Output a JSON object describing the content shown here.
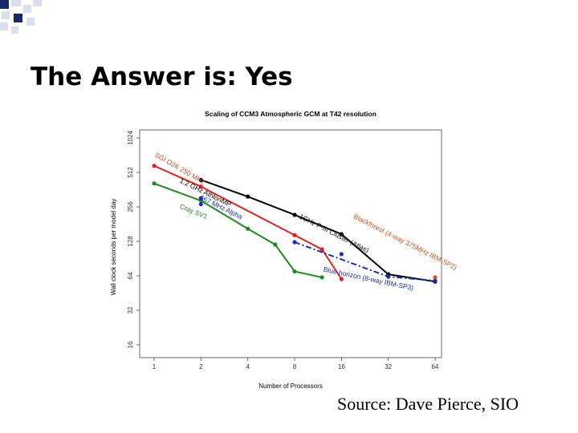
{
  "slide": {
    "title": "The Answer is: Yes",
    "source": "Source: Dave Pierce, SIO"
  },
  "colors": {
    "accent_dark": "#1b2a66",
    "accent_light": "#dadff0",
    "line_black": "#000000",
    "line_red": "#e3211c",
    "line_green": "#1f8a1f",
    "line_blue": "#1a2cc4",
    "anno_red": "#d2501f"
  },
  "chart_data": {
    "type": "line",
    "title": "Scaling of CCM3 Atmospheric GCM at T42 resolution",
    "xlabel": "Number of Processors",
    "ylabel": "Wall clock seconds per model day",
    "x_scale": "log2",
    "y_scale": "log2",
    "xticks": [
      1,
      2,
      4,
      8,
      16,
      32,
      64
    ],
    "yticks": [
      16,
      32,
      64,
      128,
      256,
      512,
      1024
    ],
    "xlim": [
      1,
      64
    ],
    "ylim": [
      16,
      1024
    ],
    "grid": false,
    "series": [
      {
        "key": "black",
        "color": "#000000",
        "style": "solid",
        "x": [
          2,
          4,
          8,
          16,
          32,
          64
        ],
        "y": [
          440,
          315,
          218,
          148,
          66,
          57
        ]
      },
      {
        "key": "red",
        "color": "#e3211c",
        "style": "solid",
        "x": [
          1,
          2,
          8,
          12,
          16
        ],
        "y": [
          585,
          385,
          145,
          109,
          60
        ]
      },
      {
        "key": "green",
        "color": "#1f8a1f",
        "style": "solid",
        "x": [
          1,
          2,
          4,
          6,
          8,
          12
        ],
        "y": [
          410,
          290,
          165,
          120,
          70,
          62
        ]
      },
      {
        "key": "blue",
        "color": "#1a2cc4",
        "style": "dashdot",
        "x": [
          8,
          32,
          64
        ],
        "y": [
          126,
          63,
          58
        ]
      }
    ],
    "extra_points": [
      {
        "x": 2,
        "y": 305,
        "color": "#1a2cc4"
      },
      {
        "x": 2,
        "y": 270,
        "color": "#1a2cc4"
      },
      {
        "x": 16,
        "y": 99,
        "color": "#1a2cc4"
      },
      {
        "x": 64,
        "y": 62,
        "color": "#d2501f"
      }
    ],
    "annotations": [
      {
        "text": "SGI O2K 250 MHz",
        "color": "#d2501f",
        "x": 1,
        "y": 710,
        "rotate": 30
      },
      {
        "text": "1.2 GHz AthlonMP",
        "color": "#000000",
        "x": 1.45,
        "y": 420,
        "rotate": 26
      },
      {
        "text": "667 MHz Alpha",
        "color": "#1a2cc4",
        "x": 1.95,
        "y": 300,
        "rotate": 26
      },
      {
        "text": "Cray SV1",
        "color": "#1f8a1f",
        "x": 1.45,
        "y": 250,
        "rotate": 22
      },
      {
        "text": "1GHz P-III Cluster (Atlas)",
        "color": "#000000",
        "x": 8.5,
        "y": 205,
        "rotate": 27
      },
      {
        "text": "Blackforest (4-way 375MHz IBM-SP2)",
        "color": "#d2501f",
        "x": 19,
        "y": 205,
        "rotate": 27
      },
      {
        "text": "Blue horizon (8-way IBM-SP3)",
        "color": "#1a2cc4",
        "x": 12.2,
        "y": 70,
        "rotate": 12
      }
    ]
  }
}
